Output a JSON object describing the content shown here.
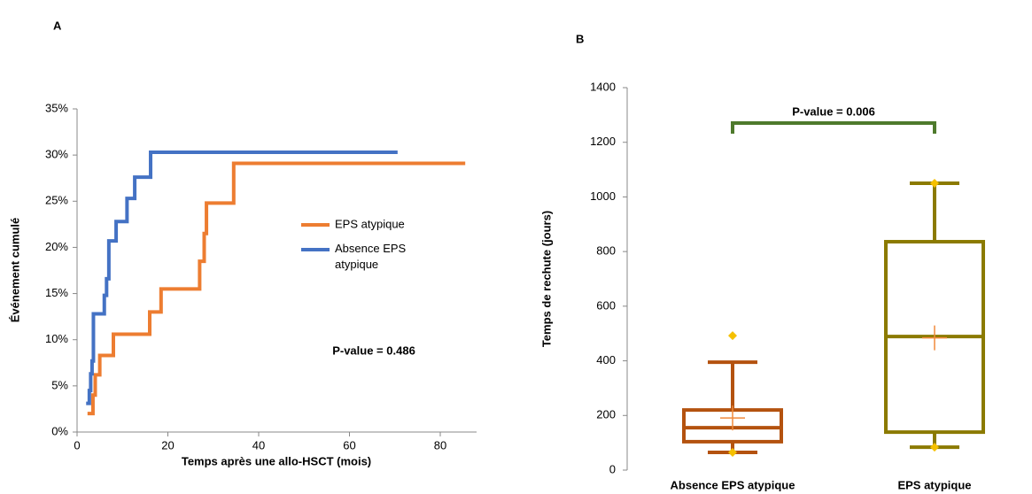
{
  "chart_data": [
    {
      "type": "step-line",
      "panel_label": "A",
      "x_label": "Temps après une allo-HSCT (mois)",
      "y_label": "Événement cumulé",
      "annotation": "P-value = 0.486",
      "xlim": [
        0,
        88
      ],
      "xticks": [
        0,
        20,
        40,
        60,
        80
      ],
      "ylim": [
        0,
        35
      ],
      "yticks": [
        {
          "value": 0,
          "label": "0%"
        },
        {
          "value": 5,
          "label": "5%"
        },
        {
          "value": 10,
          "label": "10%"
        },
        {
          "value": 15,
          "label": "15%"
        },
        {
          "value": 20,
          "label": "20%"
        },
        {
          "value": 25,
          "label": "25%"
        },
        {
          "value": 30,
          "label": "30%"
        },
        {
          "value": 35,
          "label": "35%"
        }
      ],
      "series": [
        {
          "name": "EPS atypique",
          "color": "#ed7d31",
          "x": [
            2.3,
            3.5,
            4,
            5,
            8,
            16,
            18.5,
            27,
            28,
            28.5,
            34.5,
            85.5
          ],
          "values": [
            2,
            4,
            6.2,
            8.3,
            10.6,
            13,
            15.5,
            18.5,
            21.5,
            24.8,
            29.1,
            29.1
          ]
        },
        {
          "name": "Absence EPS atypique",
          "color": "#4472c4",
          "x": [
            2,
            2.7,
            3,
            3.3,
            3.6,
            6,
            6.5,
            7,
            8.6,
            11,
            12.7,
            16.2,
            70.6
          ],
          "values": [
            3.1,
            4.5,
            6.3,
            7.7,
            12.8,
            14.8,
            16.6,
            20.7,
            22.8,
            25.3,
            27.6,
            30.3,
            30.3
          ]
        }
      ]
    },
    {
      "type": "box",
      "panel_label": "B",
      "y_label": "Temps de rechute (jours)",
      "annotation": "P-value = 0.006",
      "annotation_color": "#4e7a2c",
      "ylim": [
        0,
        1400
      ],
      "yticks": [
        0,
        200,
        400,
        600,
        800,
        1000,
        1200,
        1400
      ],
      "categories": [
        "Absence EPS atypique",
        "EPS atypique"
      ],
      "colors": [
        "#b4520f",
        "#8b7a00"
      ],
      "mean_color": "#f08a3c",
      "point_color": "#f5c000",
      "boxes": [
        {
          "min": 65,
          "whisker_low": 65,
          "q1": 104,
          "median": 155,
          "q3": 220,
          "whisker_high": 395,
          "max": 492,
          "mean": 191
        },
        {
          "min": 84,
          "whisker_low": 84,
          "q1": 139,
          "median": 489,
          "q3": 836,
          "whisker_high": 1050,
          "max": 1050,
          "mean": 484
        }
      ]
    }
  ]
}
